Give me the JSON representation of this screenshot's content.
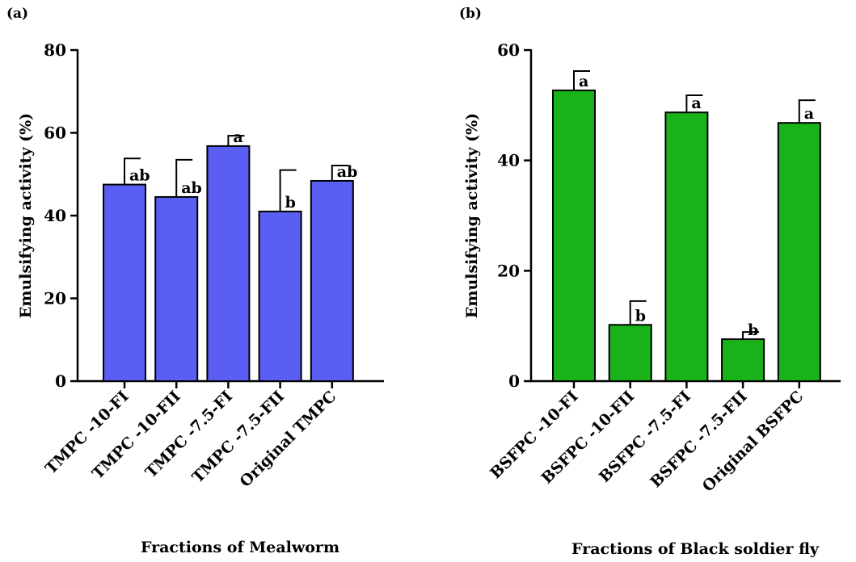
{
  "chart_data": [
    {
      "type": "bar",
      "panel_label": "(a)",
      "title": "",
      "xlabel": "Fractions of Mealworm",
      "ylabel": "Emulsifying activity (%)",
      "ylim": [
        0,
        80
      ],
      "yticks": [
        0,
        20,
        40,
        60,
        80
      ],
      "categories": [
        "TMPC -10-FI",
        "TMPC -10-FII",
        "TMPC -7.5-FI",
        "TMPC -7.5-FII",
        "Original TMPC"
      ],
      "values": [
        47.5,
        44.5,
        56.8,
        41.0,
        48.4
      ],
      "errors": [
        6.3,
        9.0,
        2.5,
        10.0,
        3.7
      ],
      "significance": [
        "ab",
        "ab",
        "a",
        "b",
        "ab"
      ],
      "bar_color": "#5a5ef2",
      "grid": false
    },
    {
      "type": "bar",
      "panel_label": "(b)",
      "title": "",
      "xlabel": "Fractions of Black soldier fly",
      "ylabel": "Emulsifying activity (%)",
      "ylim": [
        0,
        60
      ],
      "yticks": [
        0,
        20,
        40,
        60
      ],
      "categories": [
        "BSFPC -10-FI",
        "BSFPC -10-FII",
        "BSFPC -7.5-FI",
        "BSFPC -7.5-FII",
        "Original BSFPC"
      ],
      "values": [
        52.7,
        10.2,
        48.7,
        7.6,
        46.8
      ],
      "errors": [
        3.5,
        4.3,
        3.1,
        1.3,
        4.1
      ],
      "significance": [
        "a",
        "b",
        "a",
        "b",
        "a"
      ],
      "bar_color": "#19b219",
      "grid": false
    }
  ]
}
